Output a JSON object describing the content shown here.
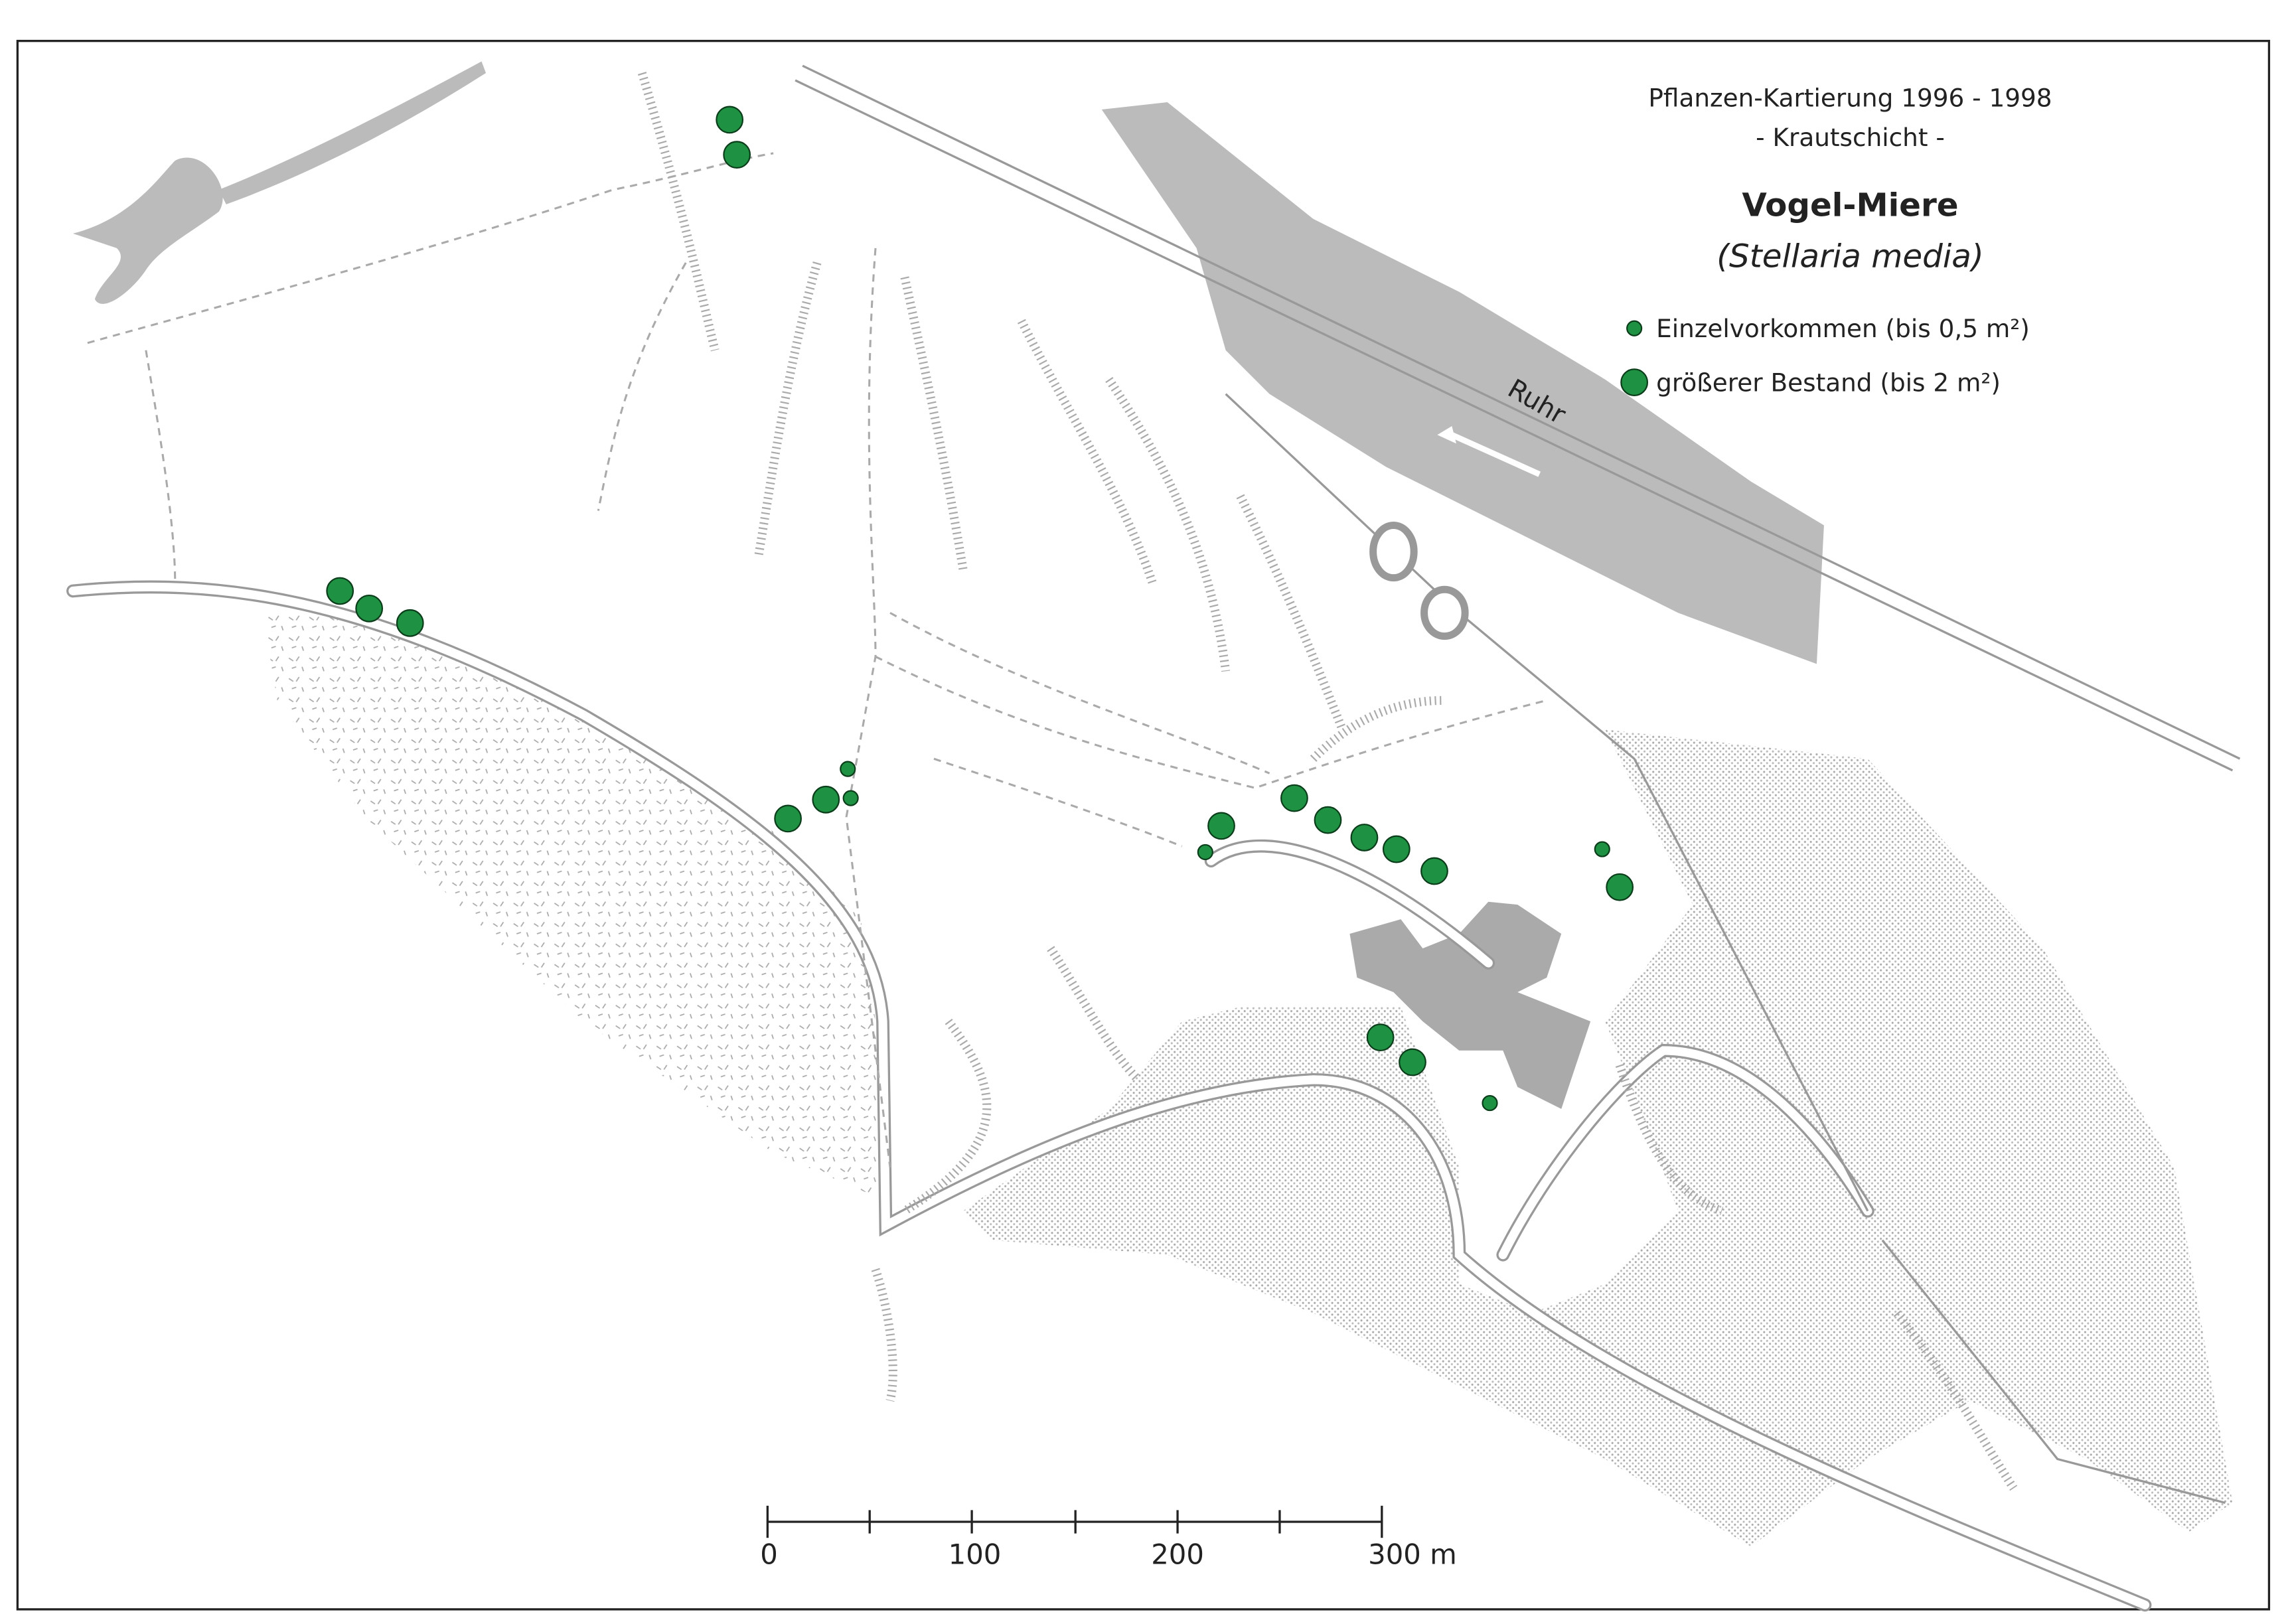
{
  "title": {
    "line1": "Pflanzen-Kartierung 1996 - 1998",
    "line2": "- Krautschicht -",
    "species": "Vogel-Miere",
    "latin": "(Stellaria media)"
  },
  "legend": {
    "small": "Einzelvorkommen (bis 0,5 m²)",
    "large": "größerer Bestand (bis 2 m²)"
  },
  "river_label": "Ruhr",
  "scale_bar": {
    "labels": [
      "0",
      "100",
      "200",
      "300 m"
    ]
  }
}
